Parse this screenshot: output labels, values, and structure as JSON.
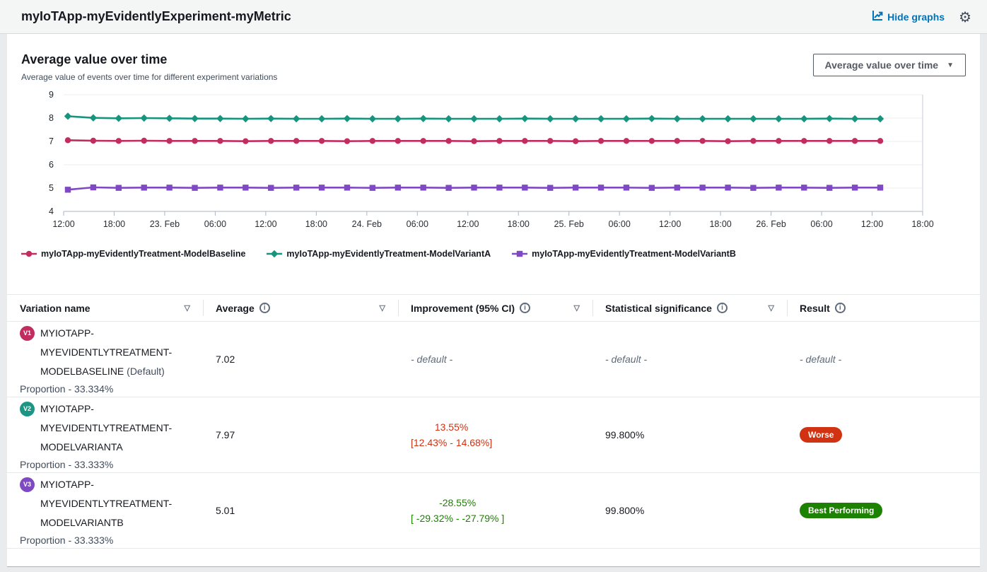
{
  "icons": {
    "gear": "⚙",
    "caret": "▼",
    "sort": "▽",
    "info": "i"
  },
  "header": {
    "title": "myIoTApp-myEvidentlyExperiment-myMetric",
    "hide_graphs_label": "Hide graphs"
  },
  "chart_panel": {
    "title": "Average value over time",
    "subtitle": "Average value of events over time for different experiment variations",
    "dropdown_value": "Average value over time"
  },
  "chart_data": {
    "type": "line",
    "title": "Average value over time",
    "ylim": [
      4,
      9
    ],
    "y_ticks": [
      4,
      5,
      6,
      7,
      8,
      9
    ],
    "grid": true,
    "legend_position": "bottom",
    "x_tick_labels": [
      "12:00",
      "18:00",
      "23. Feb",
      "06:00",
      "12:00",
      "18:00",
      "24. Feb",
      "06:00",
      "12:00",
      "18:00",
      "25. Feb",
      "06:00",
      "12:00",
      "18:00",
      "26. Feb",
      "06:00",
      "12:00",
      "18:00"
    ],
    "series": [
      {
        "name": "myIoTApp-myEvidentlyTreatment-ModelBaseline",
        "color": "#c22d60",
        "marker": "circle",
        "values": [
          7.05,
          7.03,
          7.02,
          7.03,
          7.02,
          7.02,
          7.02,
          7.01,
          7.02,
          7.02,
          7.02,
          7.01,
          7.02,
          7.02,
          7.02,
          7.02,
          7.01,
          7.02,
          7.02,
          7.02,
          7.01,
          7.02,
          7.02,
          7.02,
          7.02,
          7.02,
          7.01,
          7.02,
          7.02,
          7.02,
          7.02,
          7.02,
          7.02
        ]
      },
      {
        "name": "myIoTApp-myEvidentlyTreatment-ModelVariantA",
        "color": "#16947e",
        "marker": "diamond",
        "values": [
          8.08,
          8.01,
          7.99,
          8.0,
          7.99,
          7.98,
          7.98,
          7.97,
          7.98,
          7.97,
          7.97,
          7.98,
          7.97,
          7.97,
          7.98,
          7.97,
          7.97,
          7.97,
          7.98,
          7.97,
          7.97,
          7.97,
          7.97,
          7.98,
          7.97,
          7.97,
          7.97,
          7.97,
          7.97,
          7.97,
          7.98,
          7.97,
          7.97
        ]
      },
      {
        "name": "myIoTApp-myEvidentlyTreatment-ModelVariantB",
        "color": "#7f49c3",
        "marker": "square",
        "values": [
          4.93,
          5.03,
          5.01,
          5.02,
          5.02,
          5.01,
          5.02,
          5.02,
          5.01,
          5.02,
          5.02,
          5.02,
          5.01,
          5.02,
          5.02,
          5.01,
          5.02,
          5.02,
          5.02,
          5.01,
          5.02,
          5.02,
          5.02,
          5.01,
          5.02,
          5.02,
          5.02,
          5.01,
          5.02,
          5.02,
          5.01,
          5.02,
          5.02
        ]
      }
    ]
  },
  "table": {
    "columns": [
      {
        "label": "Variation name",
        "sortable": true,
        "info": false
      },
      {
        "label": "Average",
        "sortable": true,
        "info": true
      },
      {
        "label": "Improvement (95% CI)",
        "sortable": true,
        "info": true
      },
      {
        "label": "Statistical significance",
        "sortable": true,
        "info": true
      },
      {
        "label": "Result",
        "sortable": false,
        "info": true
      }
    ],
    "rows": [
      {
        "badge": "V1",
        "badge_color": "#c22d60",
        "name_lines": [
          "MYIOTAPP-",
          "MYEVIDENTLYTREATMENT-",
          "MODELBASELINE"
        ],
        "name_suffix": "(Default)",
        "proportion": "Proportion - 33.334%",
        "average": "7.02",
        "improvement": {
          "line1": "- default -",
          "line2": "",
          "color": "default"
        },
        "significance": "- default -",
        "result": {
          "text": "- default -",
          "badge": false,
          "badge_color": ""
        }
      },
      {
        "badge": "V2",
        "badge_color": "#1d9584",
        "name_lines": [
          "MYIOTAPP-",
          "MYEVIDENTLYTREATMENT-",
          "MODELVARIANTA"
        ],
        "name_suffix": "",
        "proportion": "Proportion - 33.333%",
        "average": "7.97",
        "improvement": {
          "line1": "13.55%",
          "line2": "[12.43% - 14.68%]",
          "color": "#d13212"
        },
        "significance": "99.800%",
        "result": {
          "text": "Worse",
          "badge": true,
          "badge_color": "#d13212"
        }
      },
      {
        "badge": "V3",
        "badge_color": "#7f49c3",
        "name_lines": [
          "MYIOTAPP-",
          "MYEVIDENTLYTREATMENT-",
          "MODELVARIANTB"
        ],
        "name_suffix": "",
        "proportion": "Proportion - 33.333%",
        "average": "5.01",
        "improvement": {
          "line1": "-28.55%",
          "line2": "[ -29.32% - -27.79% ]",
          "color": "#1d8102"
        },
        "significance": "99.800%",
        "result": {
          "text": "Best Performing",
          "badge": true,
          "badge_color": "#1d8102"
        }
      }
    ]
  }
}
